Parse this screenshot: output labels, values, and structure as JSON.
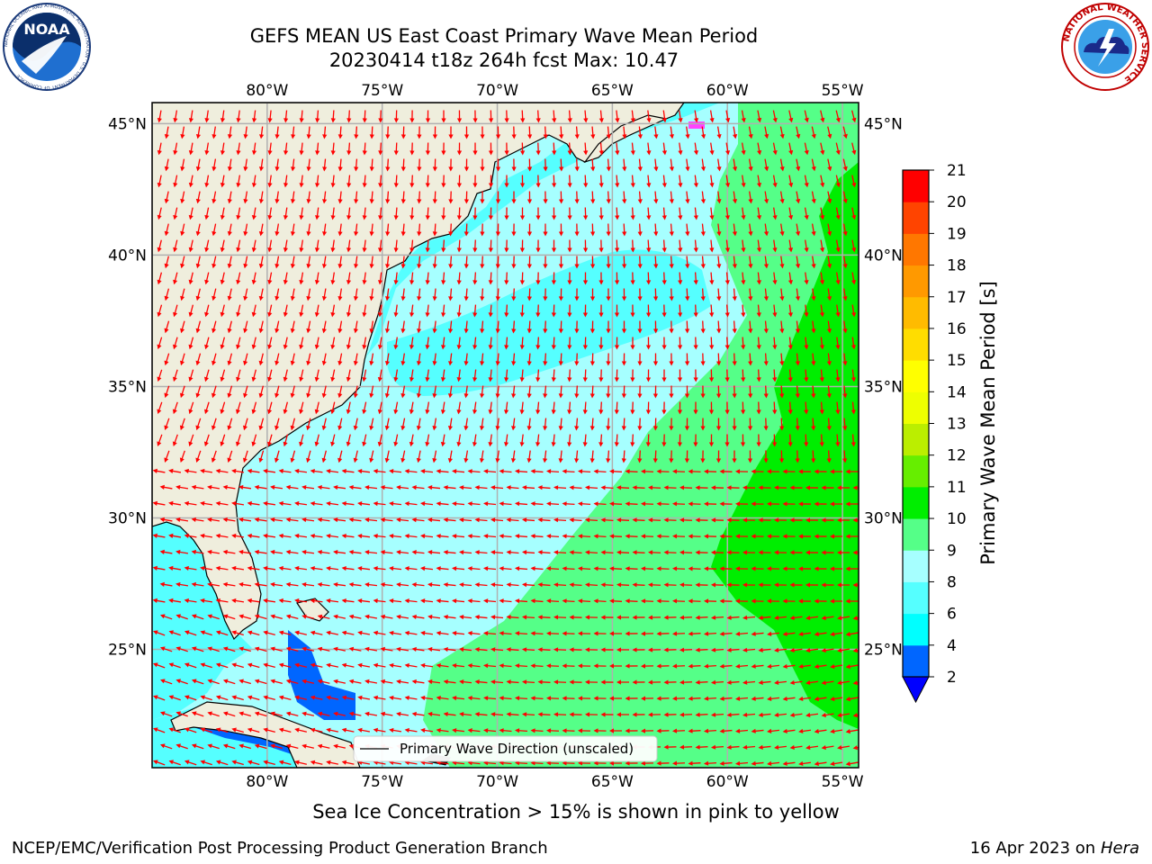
{
  "header": {
    "title_line1": "GEFS MEAN US East Coast Primary Wave Mean Period",
    "title_line2": "20230414 t18z 264h fcst   Max: 10.47"
  },
  "logos": {
    "noaa_text": "NOAA",
    "noaa_ring_text": "NATIONAL OCEANIC AND ATMOSPHERIC ADMINISTRATION · U.S. DEPARTMENT OF COMMERCE",
    "nws_ring_text": "NATIONAL WEATHER SERVICE"
  },
  "map": {
    "lon_range": [
      -85,
      -54.3
    ],
    "lat_range": [
      20.5,
      45.8
    ],
    "lon_ticks": [
      {
        "value": -80,
        "label": "80°W"
      },
      {
        "value": -75,
        "label": "75°W"
      },
      {
        "value": -70,
        "label": "70°W"
      },
      {
        "value": -65,
        "label": "65°W"
      },
      {
        "value": -60,
        "label": "60°W"
      },
      {
        "value": -55,
        "label": "55°W"
      }
    ],
    "lat_ticks": [
      {
        "value": 45,
        "label": "45°N"
      },
      {
        "value": 40,
        "label": "40°N"
      },
      {
        "value": 35,
        "label": "35°N"
      },
      {
        "value": 30,
        "label": "30°N"
      },
      {
        "value": 25,
        "label": "25°N"
      }
    ],
    "colors": {
      "land": "#efeedd",
      "grid": "#b0b0b0",
      "arrow": "#ff0000",
      "coast": "#000000"
    },
    "legend_label": "Primary Wave Direction (unscaled)"
  },
  "colorbar": {
    "label": "Primary Wave Mean Period [s]",
    "ticks": [
      "2",
      "4",
      "6",
      "8",
      "9",
      "10",
      "11",
      "12",
      "13",
      "14",
      "15",
      "16",
      "17",
      "18",
      "19",
      "20",
      "21"
    ],
    "colors": [
      "#0066ff",
      "#00ffff",
      "#55ffff",
      "#a6ffff",
      "#55ff88",
      "#00ee00",
      "#66ee00",
      "#bbee00",
      "#eeff00",
      "#ffff00",
      "#ffdd00",
      "#ffbb00",
      "#ff9900",
      "#ff7700",
      "#ff4400",
      "#ff0000"
    ],
    "under_color": "#0000ff"
  },
  "caption": "Sea Ice Concentration > 15% is shown in pink to yellow",
  "footer": {
    "left": "NCEP/EMC/Verification Post Processing Product Generation Branch",
    "right_date": "16 Apr 2023 on ",
    "right_host": "Hera"
  }
}
